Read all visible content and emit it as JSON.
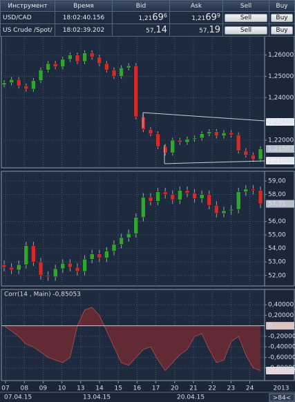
{
  "quotes": {
    "header": [
      "Инструмент",
      "Время",
      "Bid",
      "Ask",
      "Sell",
      "Buy"
    ],
    "rows": [
      {
        "instrument": "USD/CAD",
        "time": "18:02:40.156",
        "bid": {
          "base": "1,21",
          "pips": "69",
          "tail": "6"
        },
        "ask": {
          "base": "1,21",
          "pips": "69",
          "tail": "9"
        },
        "sell": "Sell",
        "buy": "Buy"
      },
      {
        "instrument": "US Crude /Spot/",
        "time": "18:02:39.202",
        "bid": {
          "base": "57,",
          "pips": "14"
        },
        "ask": {
          "base": "57,",
          "pips": "19"
        },
        "sell": "Sell",
        "buy": "Buy"
      }
    ]
  },
  "chart_data": [
    {
      "type": "candlestick",
      "up_color": "#2fa72f",
      "down_color": "#d42a2a",
      "grid": true,
      "ylim": [
        1.207,
        1.269
      ],
      "yticks": [
        {
          "value": 1.26,
          "label": "1,26000"
        },
        {
          "value": 1.25,
          "label": "1,25000"
        },
        {
          "value": 1.24,
          "label": "1,24000"
        },
        {
          "value": 1.22,
          "label": "1,22000"
        }
      ],
      "price_labels": [
        {
          "value": 1.2286,
          "label": "1,22860",
          "color": "#e9edf2"
        },
        {
          "value": 1.21587,
          "label": "1,21587",
          "color": "#b9c0ca"
        },
        {
          "value": 1.21038,
          "label": "1,21038",
          "color": "#e9edf2"
        }
      ],
      "open": [
        1.246,
        1.247,
        1.2485,
        1.2455,
        1.244,
        1.248,
        1.253,
        1.256,
        1.2545,
        1.258,
        1.26,
        1.257,
        1.261,
        1.259,
        1.256,
        1.253,
        1.25,
        1.254,
        1.255,
        1.231,
        1.225,
        1.223,
        1.217,
        1.214,
        1.22,
        1.219,
        1.2205,
        1.221,
        1.223,
        1.224,
        1.222,
        1.2235,
        1.2225,
        1.215,
        1.213,
        1.211
      ],
      "high": [
        1.2482,
        1.2497,
        1.2497,
        1.2467,
        1.2492,
        1.2542,
        1.2572,
        1.2572,
        1.2592,
        1.2612,
        1.2612,
        1.2622,
        1.2622,
        1.2602,
        1.2572,
        1.2542,
        1.2552,
        1.2562,
        1.2562,
        1.2322,
        1.2262,
        1.2242,
        1.2182,
        1.2212,
        1.2212,
        1.2217,
        1.2222,
        1.2242,
        1.2252,
        1.2252,
        1.2247,
        1.2247,
        1.2237,
        1.2162,
        1.2142,
        1.2171
      ],
      "low": [
        1.2448,
        1.2458,
        1.2443,
        1.2428,
        1.2428,
        1.2468,
        1.2518,
        1.2533,
        1.2533,
        1.2568,
        1.2558,
        1.2558,
        1.2578,
        1.2548,
        1.2518,
        1.2488,
        1.2488,
        1.2528,
        1.2298,
        1.2238,
        1.2218,
        1.2158,
        1.2128,
        1.2128,
        1.2178,
        1.2178,
        1.2193,
        1.2198,
        1.2218,
        1.2208,
        1.2208,
        1.2213,
        1.2138,
        1.2118,
        1.2098,
        1.2098
      ],
      "close": [
        1.247,
        1.2485,
        1.2455,
        1.244,
        1.248,
        1.253,
        1.256,
        1.2545,
        1.258,
        1.26,
        1.257,
        1.261,
        1.259,
        1.256,
        1.253,
        1.25,
        1.254,
        1.255,
        1.231,
        1.225,
        1.223,
        1.217,
        1.214,
        1.22,
        1.219,
        1.2205,
        1.221,
        1.223,
        1.224,
        1.222,
        1.2235,
        1.2225,
        1.215,
        1.213,
        1.211,
        1.2159
      ]
    },
    {
      "type": "candlestick",
      "up_color": "#2fa72f",
      "down_color": "#d42a2a",
      "grid": true,
      "ylim": [
        51.22,
        59.72
      ],
      "yticks": [
        {
          "value": 59,
          "label": "59,00"
        },
        {
          "value": 58,
          "label": "58,00"
        },
        {
          "value": 56,
          "label": "56,00"
        },
        {
          "value": 55,
          "label": "55,00"
        },
        {
          "value": 54,
          "label": "54,00"
        },
        {
          "value": 53,
          "label": "53,00"
        },
        {
          "value": 52,
          "label": "52,00"
        }
      ],
      "price_labels": [
        {
          "value": 57.31,
          "label": "57,31",
          "color": "#b9c0ca"
        }
      ],
      "open": [
        52.8,
        52.6,
        52.4,
        52.8,
        54.2,
        53.0,
        52.0,
        51.9,
        52.5,
        52.9,
        52.6,
        52.3,
        53.2,
        53.6,
        53.3,
        53.8,
        54.3,
        54.8,
        55.1,
        56.3,
        57.8,
        57.5,
        58.2,
        58.0,
        57.6,
        58.3,
        58.1,
        57.7,
        58.0,
        57.2,
        56.6,
        56.8,
        56.9,
        58.2,
        58.4,
        58.3
      ],
      "high": [
        53.1,
        52.9,
        53.1,
        54.5,
        54.5,
        53.3,
        52.3,
        52.8,
        53.2,
        53.2,
        52.9,
        53.5,
        53.9,
        53.9,
        54.1,
        54.6,
        55.1,
        55.4,
        56.6,
        58.1,
        58.1,
        58.5,
        58.5,
        58.3,
        58.6,
        58.6,
        58.4,
        58.3,
        58.3,
        57.5,
        57.1,
        57.2,
        58.5,
        58.7,
        58.7,
        58.6
      ],
      "low": [
        52.3,
        52.1,
        52.1,
        52.5,
        52.7,
        51.7,
        51.6,
        51.6,
        52.2,
        52.3,
        52.0,
        52.0,
        52.9,
        53.0,
        53.0,
        53.5,
        54.0,
        54.5,
        54.8,
        56.0,
        57.2,
        57.2,
        57.7,
        57.3,
        57.3,
        57.8,
        57.4,
        57.4,
        56.9,
        56.3,
        56.3,
        56.5,
        56.6,
        57.9,
        58.0,
        57.0
      ],
      "close": [
        52.6,
        52.4,
        52.8,
        54.2,
        53.0,
        52.0,
        51.9,
        52.5,
        52.9,
        52.6,
        52.3,
        53.2,
        53.6,
        53.3,
        53.8,
        54.3,
        54.8,
        55.1,
        56.3,
        57.8,
        57.5,
        58.2,
        58.0,
        57.6,
        58.3,
        58.1,
        57.7,
        58.0,
        57.2,
        56.6,
        56.8,
        56.9,
        58.2,
        58.4,
        58.3,
        57.31
      ]
    },
    {
      "type": "area",
      "title": "Corr(14 , Main) -0,85053",
      "title_color": "#b03030",
      "color": "#6e2a30",
      "line_color": "#9a4a50",
      "grid": true,
      "ylim": [
        -1.04,
        0.69
      ],
      "yticks": [
        {
          "value": 0.4,
          "label": "0,40000"
        },
        {
          "value": 0.2,
          "label": "0,20000"
        },
        {
          "value": -0.2,
          "label": "-0,20000"
        },
        {
          "value": -0.4,
          "label": "-0,40000"
        },
        {
          "value": -0.6,
          "label": "-0,60000"
        },
        {
          "value": -0.8,
          "label": "-0,80000"
        }
      ],
      "price_labels": [
        {
          "value": 0,
          "label": "0",
          "color": "#d9c4c6"
        },
        {
          "value": -0.85053,
          "label": "-0,85053",
          "color": "#e9d6d8"
        }
      ],
      "values": [
        0.0,
        -0.1,
        -0.2,
        -0.35,
        -0.4,
        -0.5,
        -0.6,
        -0.65,
        -0.7,
        -0.6,
        0.0,
        0.3,
        0.35,
        0.2,
        -0.1,
        -0.4,
        -0.7,
        -0.75,
        -0.6,
        -0.45,
        -0.4,
        -0.65,
        -0.85,
        -0.7,
        -0.55,
        -0.45,
        -0.2,
        -0.15,
        -0.45,
        -0.7,
        -0.65,
        -0.3,
        -0.2,
        -0.55,
        -0.8,
        -0.85053
      ]
    }
  ],
  "x_axis": {
    "days": [
      "07",
      "08",
      "09",
      "10",
      "13",
      "14",
      "15",
      "16",
      "17",
      "20",
      "21",
      "22",
      "23",
      "24"
    ],
    "dates": [
      "07.04.15",
      "13.04.15",
      "20.04.15"
    ]
  },
  "footer": {
    "year": "2013",
    "scroll": ">84<"
  }
}
